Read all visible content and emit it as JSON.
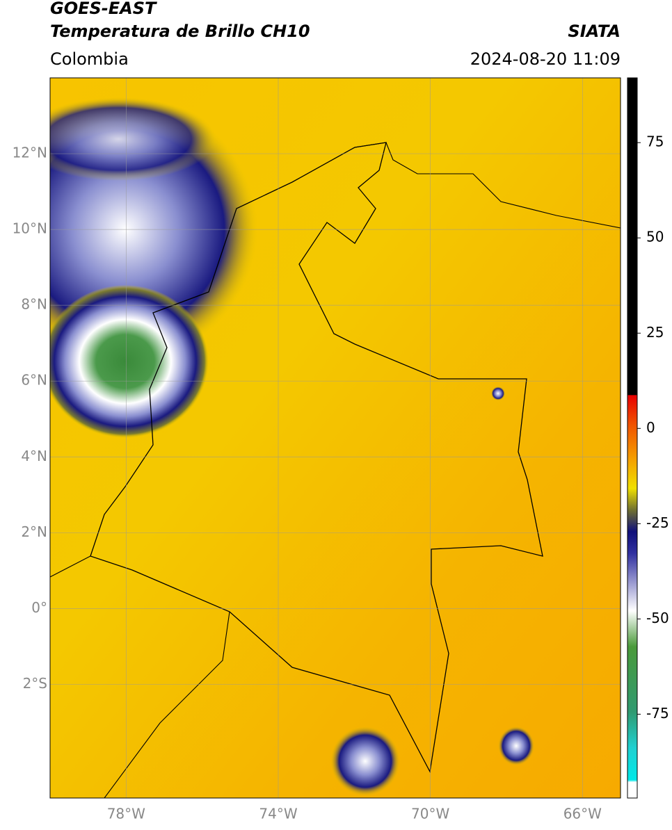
{
  "header": {
    "title": "GOES-EAST",
    "subtitle": "Temperatura de Brillo CH10",
    "source": "SIATA",
    "region": "Colombia",
    "datetime": "2024-08-20 11:09"
  },
  "map": {
    "xlim": [
      -80,
      -65
    ],
    "ylim": [
      -5,
      14
    ],
    "xticks": [
      {
        "value": -78,
        "label": "78°W"
      },
      {
        "value": -74,
        "label": "74°W"
      },
      {
        "value": -70,
        "label": "70°W"
      },
      {
        "value": -66,
        "label": "66°W"
      }
    ],
    "yticks": [
      {
        "value": 12,
        "label": "12°N"
      },
      {
        "value": 10,
        "label": "10°N"
      },
      {
        "value": 8,
        "label": "8°N"
      },
      {
        "value": 6,
        "label": "6°N"
      },
      {
        "value": 4,
        "label": "4°N"
      },
      {
        "value": 2,
        "label": "2°N"
      },
      {
        "value": 0,
        "label": "0°"
      },
      {
        "value": -2,
        "label": "2°S"
      }
    ]
  },
  "colorbar": {
    "lim": [
      -97,
      92
    ],
    "ticks": [
      75,
      50,
      25,
      0,
      -25,
      -50,
      -75
    ]
  }
}
